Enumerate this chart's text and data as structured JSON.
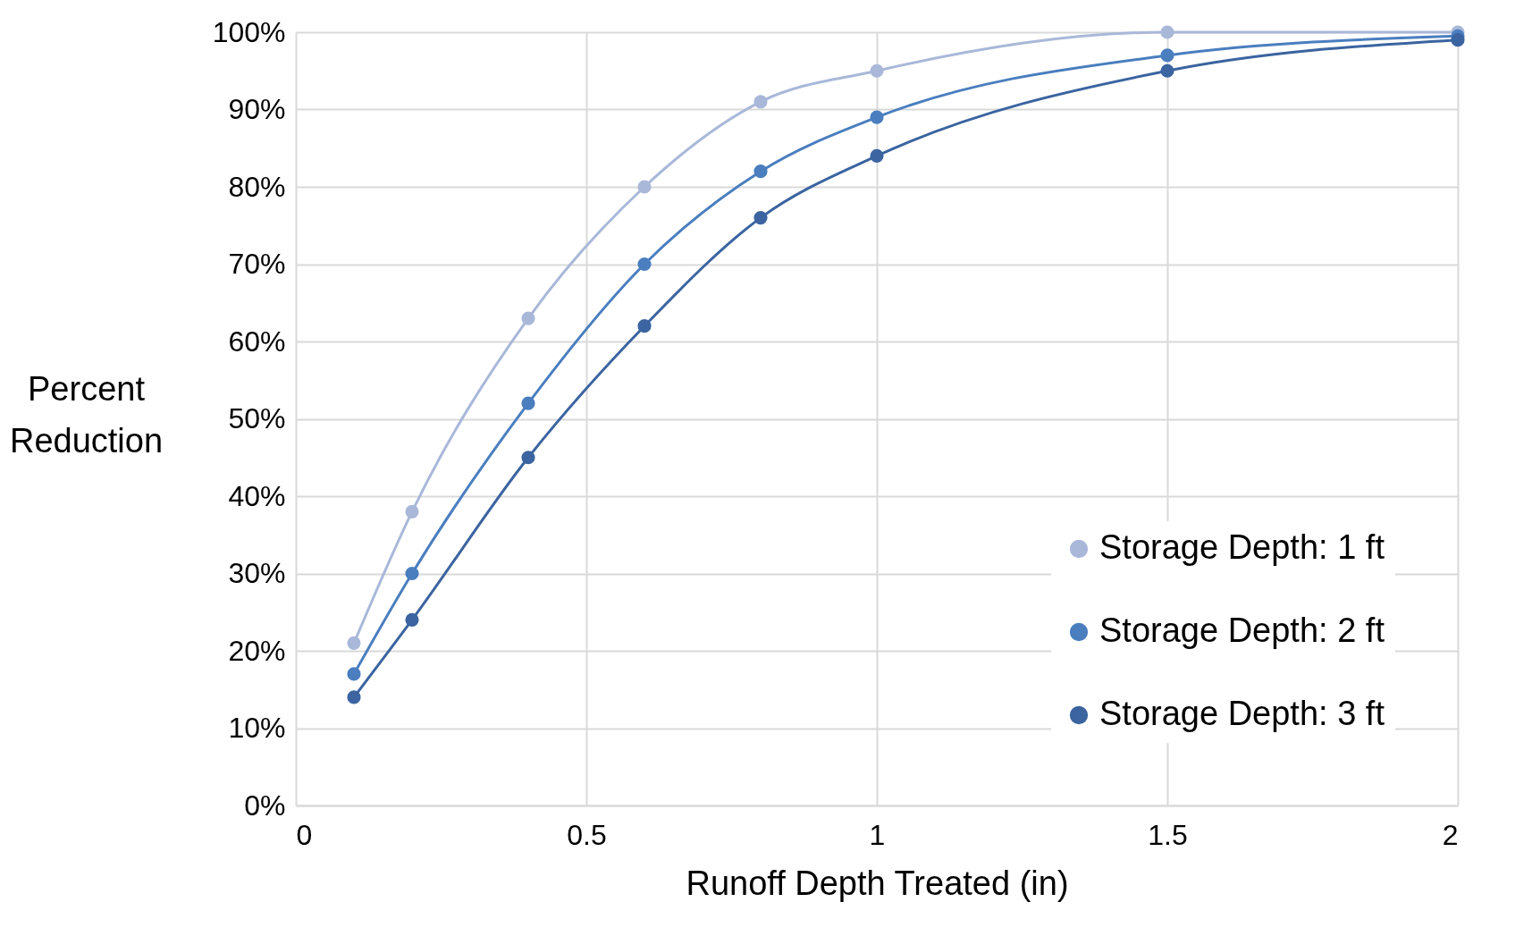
{
  "chart_data": {
    "type": "line",
    "xlabel": "Runoff Depth Treated (in)",
    "ylabel": "Percent Reduction",
    "x": [
      0.1,
      0.2,
      0.4,
      0.6,
      0.8,
      1,
      1.5,
      2
    ],
    "series": [
      {
        "name": "Storage Depth: 1 ft",
        "color": "#a9b8d9",
        "values": [
          21,
          38,
          63,
          80,
          91,
          95,
          100,
          100
        ]
      },
      {
        "name": "Storage Depth: 2 ft",
        "color": "#4a7ebf",
        "values": [
          17,
          30,
          52,
          70,
          82,
          89,
          97,
          99.5
        ]
      },
      {
        "name": "Storage Depth: 3 ft",
        "color": "#3b64a0",
        "values": [
          14,
          24,
          45,
          62,
          76,
          84,
          95,
          99
        ]
      }
    ],
    "xlim": [
      0,
      2
    ],
    "xticks": [
      0,
      0.5,
      1,
      1.5,
      2
    ],
    "ylim": [
      0,
      100
    ],
    "yticks": [
      {
        "value": 0,
        "label": "0%"
      },
      {
        "value": 10,
        "label": "10%"
      },
      {
        "value": 20,
        "label": "20%"
      },
      {
        "value": 30,
        "label": "30%"
      },
      {
        "value": 40,
        "label": "40%"
      },
      {
        "value": 50,
        "label": "50%"
      },
      {
        "value": 60,
        "label": "60%"
      },
      {
        "value": 70,
        "label": "70%"
      },
      {
        "value": 80,
        "label": "80%"
      },
      {
        "value": 90,
        "label": "90%"
      },
      {
        "value": 100,
        "label": "100%"
      }
    ],
    "grid": true,
    "legend": "bottom right",
    "marker": "circle",
    "line_style": "solid"
  }
}
